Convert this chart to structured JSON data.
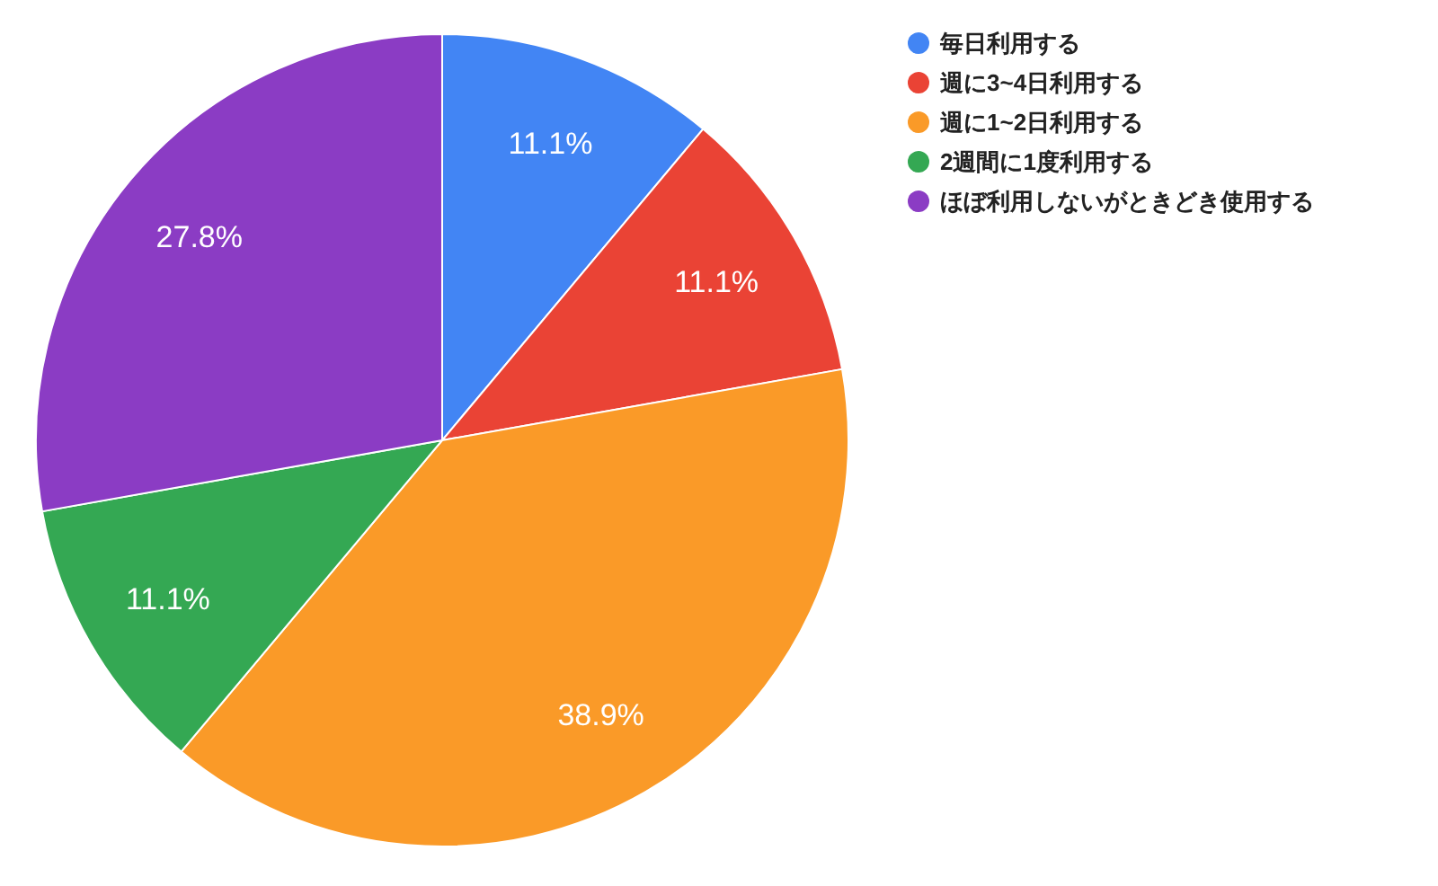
{
  "chart_data": {
    "type": "pie",
    "categories": [
      "毎日利用する",
      "週に3~4日利用する",
      "週に1~2日利用する",
      "2週間に1度利用する",
      "ほぼ利用しないがときどき使用する"
    ],
    "values": [
      11.1,
      11.1,
      38.9,
      11.1,
      27.8
    ],
    "colors": [
      "#4285f4",
      "#ea4335",
      "#fa9a28",
      "#34a853",
      "#8b3cc4"
    ],
    "value_labels": [
      "11.1%",
      "11.1%",
      "38.9%",
      "11.1%",
      "27.8%"
    ],
    "legend": "right"
  }
}
